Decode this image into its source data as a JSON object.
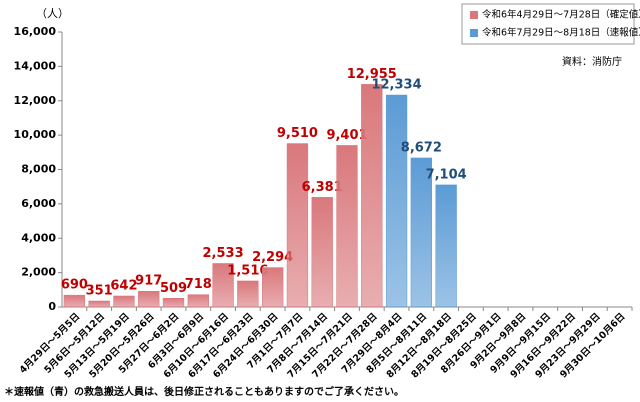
{
  "chart_data": {
    "type": "bar",
    "y_unit_label": "（人）",
    "source_note": "資料：消防庁",
    "footnote": "＊速報値（青）の救急搬送人員は、後日修正されることもありますのでご了承ください。",
    "legend_position": "upper right",
    "categories": [
      "4月29日～5月5日",
      "5月6日～5月12日",
      "5月13日～5月19日",
      "5月20日～5月26日",
      "5月27日～6月2日",
      "6月3日～6月9日",
      "6月10日～6月16日",
      "6月17日～6月23日",
      "6月24日～6月30日",
      "7月1日～7月7日",
      "7月8日～7月14日",
      "7月15日～7月21日",
      "7月22日～7月28日",
      "7月29日～8月4日",
      "8月5日～8月11日",
      "8月12日～8月18日",
      "8月19日～8月25日",
      "8月26日～9月1日",
      "9月2日～9月8日",
      "9月9日～9月15日",
      "9月16日～9月22日",
      "9月23日～9月29日",
      "9月30日～10月6日"
    ],
    "series": [
      {
        "name": "令和6年4月29日～7月28日（確定値）",
        "color": "#d9787c",
        "label_color": "#c00000",
        "values": [
          690,
          351,
          642,
          917,
          509,
          718,
          2533,
          1516,
          2294,
          9510,
          6381,
          9401,
          12955,
          null,
          null,
          null,
          null,
          null,
          null,
          null,
          null,
          null,
          null
        ],
        "value_labels": [
          "690",
          "351",
          "642",
          "917",
          "509",
          "718",
          "2,533",
          "1,516",
          "2,294",
          "9,510",
          "6,381",
          "9,401",
          "12,955",
          null,
          null,
          null,
          null,
          null,
          null,
          null,
          null,
          null,
          null
        ]
      },
      {
        "name": "令和6年7月29日～8月18日（速報値）",
        "color": "#5b9bd5",
        "label_color": "#1f4e79",
        "values": [
          null,
          null,
          null,
          null,
          null,
          null,
          null,
          null,
          null,
          null,
          null,
          null,
          null,
          12334,
          8672,
          7104,
          null,
          null,
          null,
          null,
          null,
          null,
          null
        ],
        "value_labels": [
          null,
          null,
          null,
          null,
          null,
          null,
          null,
          null,
          null,
          null,
          null,
          null,
          null,
          "12,334",
          "8,672",
          "7,104",
          null,
          null,
          null,
          null,
          null,
          null,
          null
        ]
      }
    ],
    "ylim": [
      0,
      16000
    ],
    "yticks": [
      0,
      {
        "value": 2000,
        "label": "2,000"
      },
      {
        "value": 4000,
        "label": "4,000"
      },
      {
        "value": 6000,
        "label": "6,000"
      },
      {
        "value": 8000,
        "label": "8,000"
      },
      {
        "value": 10000,
        "label": "10,000"
      },
      {
        "value": 12000,
        "label": "12,000"
      },
      {
        "value": 14000,
        "label": "14,000"
      },
      {
        "value": 16000,
        "label": "16,000"
      }
    ],
    "grid": false
  }
}
